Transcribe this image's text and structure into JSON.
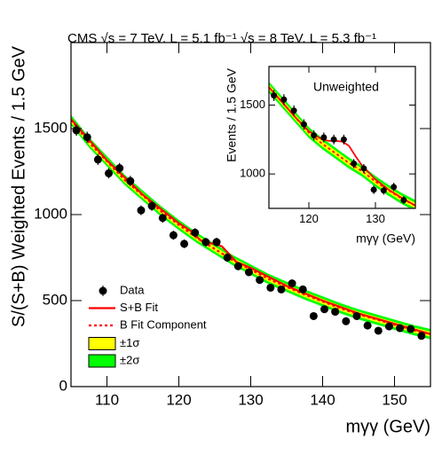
{
  "chart_data": [
    {
      "type": "fit",
      "title": "CMS   √s = 7 TeV, L = 5.1 fb⁻¹ √s = 8 TeV, L = 5.3 fb⁻¹",
      "x_label": "mγγ (GeV)",
      "y_label": "S/(S+B) Weighted Events / 1.5 GeV",
      "xlim": [
        105,
        155
      ],
      "ylim": [
        0,
        2000
      ],
      "xticks": [
        110,
        120,
        130,
        140,
        150
      ],
      "yticks": [
        0,
        500,
        1000,
        1500
      ],
      "legend": "bottom-left",
      "series": [
        {
          "name": "Data",
          "color": "#000000",
          "mark": "points",
          "x": [
            105.75,
            107.25,
            108.75,
            110.25,
            111.75,
            113.25,
            114.75,
            116.25,
            117.75,
            119.25,
            120.75,
            122.25,
            123.75,
            125.25,
            126.75,
            128.25,
            129.75,
            131.25,
            132.75,
            134.25,
            135.75,
            137.25,
            138.75,
            140.25,
            141.75,
            143.25,
            144.75,
            146.25,
            147.75,
            149.25,
            150.75,
            152.25,
            153.75
          ],
          "values": [
            1490,
            1450,
            1320,
            1240,
            1270,
            1195,
            1025,
            1050,
            980,
            880,
            830,
            895,
            840,
            840,
            750,
            700,
            665,
            620,
            575,
            565,
            600,
            565,
            410,
            450,
            435,
            380,
            410,
            355,
            325,
            350,
            340,
            335,
            295
          ],
          "errors": [
            32,
            32,
            31,
            30,
            30,
            30,
            28,
            28,
            27,
            26,
            25,
            26,
            25,
            25,
            24,
            23,
            22,
            22,
            21,
            21,
            22,
            21,
            18,
            19,
            18,
            17,
            18,
            17,
            16,
            17,
            16,
            16,
            15
          ]
        },
        {
          "name": "S+B Fit",
          "color": "#ff0000",
          "mark": "line",
          "dash": "solid",
          "x": [
            105,
            110,
            115,
            120,
            122,
            123,
            124,
            125,
            126,
            127,
            128,
            130,
            135,
            140,
            145,
            150,
            155
          ],
          "values": [
            1555,
            1315,
            1115,
            950,
            895,
            850,
            835,
            830,
            815,
            770,
            725,
            690,
            585,
            500,
            425,
            365,
            305
          ]
        },
        {
          "name": "B Fit Component",
          "color": "#ff0000",
          "mark": "line",
          "dash": "dotted",
          "x": [
            105,
            107.5,
            110,
            112.5,
            115,
            117.5,
            120,
            122.5,
            125,
            127.5,
            130,
            132.5,
            135,
            137.5,
            140,
            142.5,
            145,
            147.5,
            150,
            152.5,
            155
          ],
          "values": [
            1550,
            1420,
            1310,
            1200,
            1110,
            1020,
            940,
            865,
            800,
            735,
            680,
            625,
            580,
            535,
            495,
            455,
            420,
            390,
            360,
            330,
            305
          ]
        }
      ],
      "bands": [
        {
          "name": "±1σ",
          "color": "#ffff00",
          "halfwidth": 15
        },
        {
          "name": "±2σ",
          "color": "#00ff00",
          "halfwidth": 30
        }
      ]
    },
    {
      "type": "fit",
      "title": "Unweighted",
      "x_label": "mγγ (GeV)",
      "y_label": "Events / 1.5 GeV",
      "xlim": [
        114,
        136
      ],
      "ylim": [
        750,
        1780
      ],
      "xticks": [
        120,
        130
      ],
      "yticks": [
        1000,
        1500
      ],
      "series": [
        {
          "color": "#000000",
          "mark": "points",
          "x": [
            114.75,
            116.25,
            117.75,
            119.25,
            120.75,
            122.25,
            123.75,
            125.25,
            126.75,
            128.25,
            129.75,
            131.25,
            132.75,
            134.25
          ],
          "values": [
            1570,
            1540,
            1460,
            1360,
            1280,
            1265,
            1250,
            1250,
            1075,
            1040,
            885,
            880,
            905,
            810
          ],
          "errors": [
            40,
            39,
            38,
            37,
            36,
            36,
            35,
            35,
            33,
            32,
            30,
            30,
            30,
            28
          ]
        },
        {
          "color": "#ff0000",
          "mark": "line",
          "dash": "solid",
          "x": [
            114,
            116,
            118,
            120,
            122,
            123,
            124,
            125,
            126,
            127,
            128,
            130,
            132,
            134,
            136
          ],
          "values": [
            1630,
            1520,
            1410,
            1310,
            1250,
            1240,
            1240,
            1235,
            1205,
            1130,
            1060,
            960,
            885,
            825,
            770
          ]
        },
        {
          "color": "#ff0000",
          "mark": "line",
          "dash": "dotted",
          "x": [
            114,
            116,
            118,
            120,
            122,
            124,
            126,
            128,
            130,
            132,
            134,
            136
          ],
          "values": [
            1630,
            1520,
            1410,
            1300,
            1220,
            1150,
            1080,
            1020,
            945,
            880,
            820,
            770
          ]
        }
      ],
      "bands": [
        {
          "color": "#ffff00",
          "halfwidth": 20
        },
        {
          "color": "#00ff00",
          "halfwidth": 40
        }
      ]
    }
  ]
}
